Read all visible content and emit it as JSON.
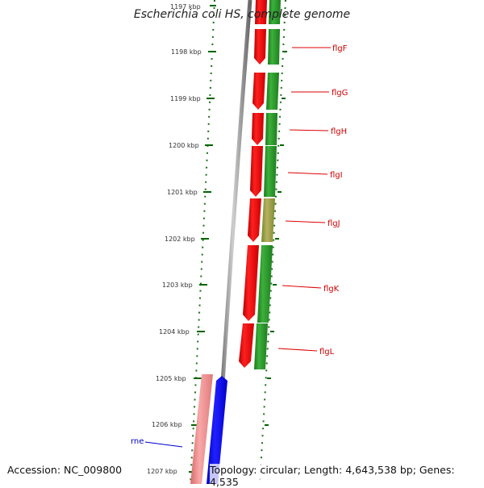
{
  "title": "Escherichia coli HS, complete genome",
  "accession": "Accession: NC_009800",
  "summary": "Topology: circular; Length: 4,643,538 bp; Genes: 4,535",
  "ruler": [
    "1197 kbp",
    "1198 kbp",
    "1199 kbp",
    "1200 kbp",
    "1201 kbp",
    "1202 kbp",
    "1203 kbp",
    "1204 kbp",
    "1205 kbp",
    "1206 kbp",
    "1207 kbp"
  ],
  "genes": [
    {
      "label": "flgF",
      "color": "#cc0000"
    },
    {
      "label": "flgG",
      "color": "#cc0000"
    },
    {
      "label": "flgH",
      "color": "#cc0000"
    },
    {
      "label": "flgI",
      "color": "#cc0000"
    },
    {
      "label": "flgJ",
      "color": "#cc0000"
    },
    {
      "label": "flgK",
      "color": "#cc0000"
    },
    {
      "label": "flgL",
      "color": "#cc0000"
    },
    {
      "label": "rne",
      "color": "#0000cc"
    }
  ],
  "colors": {
    "forward_cds": "#ee0000",
    "forward_gene": "#228b22",
    "reverse_cds": "#0000ee",
    "reverse_gene": "#f08080",
    "backbone": "#888888",
    "tick": "#006400"
  }
}
